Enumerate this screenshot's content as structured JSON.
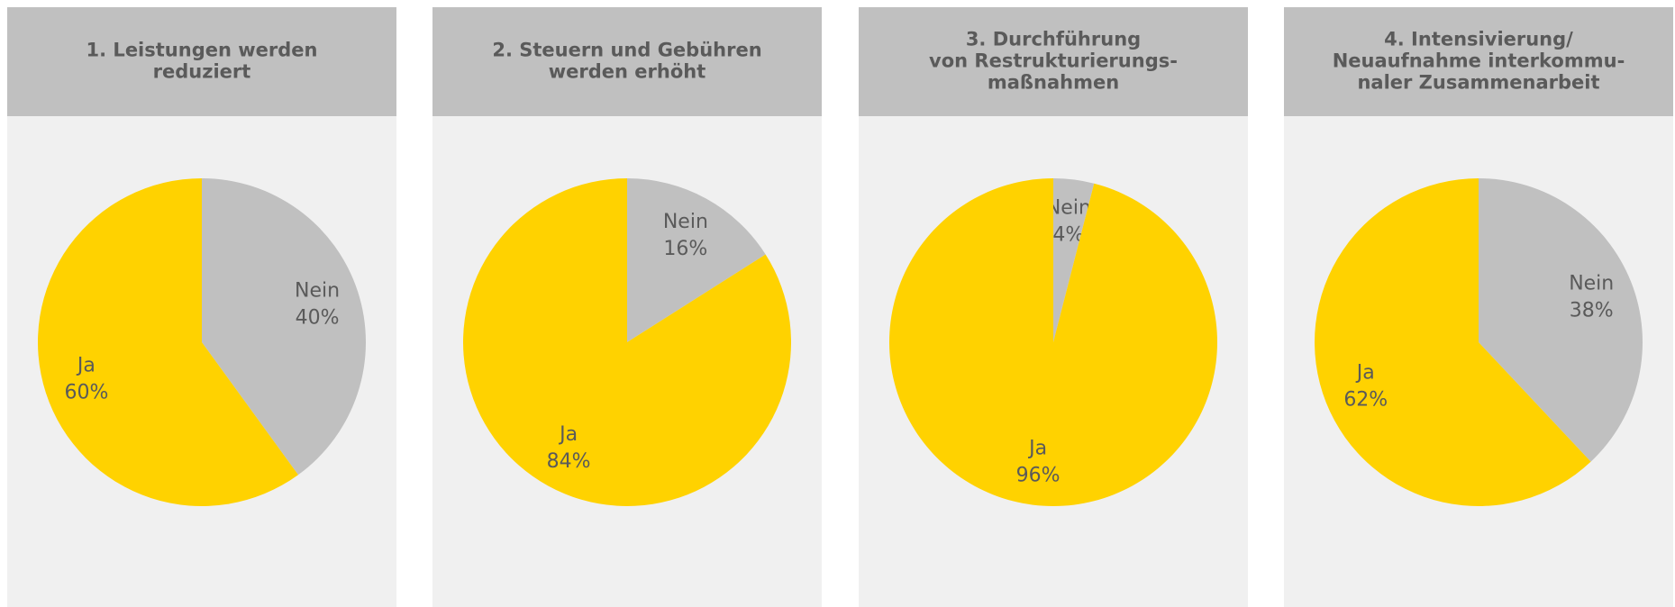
{
  "chart_data": [
    {
      "type": "pie",
      "title": [
        "1. Leistungen werden",
        "reduziert"
      ],
      "categories": [
        "Nein",
        "Ja"
      ],
      "values": [
        40,
        60
      ],
      "value_labels": [
        "40%",
        "60%"
      ],
      "colors": [
        "#c0c0c0",
        "#ffd200"
      ]
    },
    {
      "type": "pie",
      "title": [
        "2. Steuern und Gebühren",
        "werden erhöht"
      ],
      "categories": [
        "Nein",
        "Ja"
      ],
      "values": [
        16,
        84
      ],
      "value_labels": [
        "16%",
        "84%"
      ],
      "colors": [
        "#c0c0c0",
        "#ffd200"
      ]
    },
    {
      "type": "pie",
      "title": [
        "3. Durchführung",
        "von Restrukturierungs-",
        "maßnahmen"
      ],
      "categories": [
        "Nein",
        "Ja"
      ],
      "values": [
        4,
        96
      ],
      "value_labels": [
        "4%",
        "96%"
      ],
      "colors": [
        "#c0c0c0",
        "#ffd200"
      ]
    },
    {
      "type": "pie",
      "title": [
        "4. Intensivierung/",
        "Neuaufnahme interkommu-",
        "naler Zusammenarbeit"
      ],
      "categories": [
        "Nein",
        "Ja"
      ],
      "values": [
        38,
        62
      ],
      "value_labels": [
        "38%",
        "62%"
      ],
      "colors": [
        "#c0c0c0",
        "#ffd200"
      ]
    }
  ]
}
